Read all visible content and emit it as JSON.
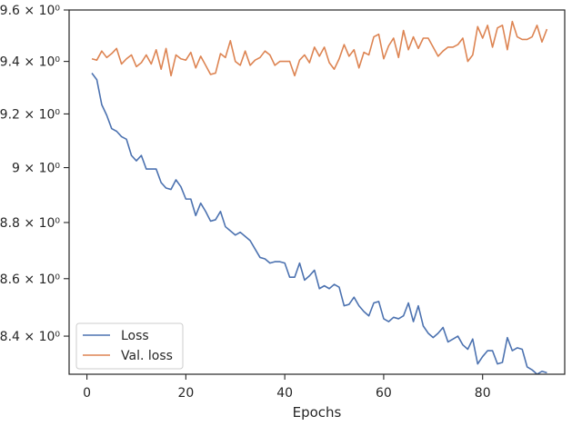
{
  "chart_data": {
    "type": "line",
    "xlabel": "Epochs",
    "ylabel": "",
    "xlim": [
      -3.6,
      96.6
    ],
    "ylim": [
      8.27,
      9.6
    ],
    "y_scale": "log",
    "grid": false,
    "legend_position": "lower-left",
    "x_ticks": [
      0,
      20,
      40,
      60,
      80
    ],
    "x_tick_labels": [
      "0",
      "20",
      "40",
      "60",
      "80"
    ],
    "y_ticks": [
      8.4,
      8.6,
      8.8,
      9.0,
      9.2,
      9.4,
      9.6
    ],
    "y_tick_labels": [
      "8.4 × 10⁰",
      "8.6 × 10⁰",
      "8.8 × 10⁰",
      "9 × 10⁰",
      "9.2 × 10⁰",
      "9.4 × 10⁰",
      "9.6 × 10⁰"
    ],
    "x": [
      1,
      2,
      3,
      4,
      5,
      6,
      7,
      8,
      9,
      10,
      11,
      12,
      13,
      14,
      15,
      16,
      17,
      18,
      19,
      20,
      21,
      22,
      23,
      24,
      25,
      26,
      27,
      28,
      29,
      30,
      31,
      32,
      33,
      34,
      35,
      36,
      37,
      38,
      39,
      40,
      41,
      42,
      43,
      44,
      45,
      46,
      47,
      48,
      49,
      50,
      51,
      52,
      53,
      54,
      55,
      56,
      57,
      58,
      59,
      60,
      61,
      62,
      63,
      64,
      65,
      66,
      67,
      68,
      69,
      70,
      71,
      72,
      73,
      74,
      75,
      76,
      77,
      78,
      79,
      80,
      81,
      82,
      83,
      84,
      85,
      86,
      87,
      88,
      89,
      90,
      91,
      92,
      93
    ],
    "series": [
      {
        "name": "Loss",
        "color": "#4c72b0",
        "values": [
          9.355,
          9.33,
          9.235,
          9.195,
          9.145,
          9.135,
          9.115,
          9.105,
          9.045,
          9.025,
          9.045,
          8.995,
          8.995,
          8.995,
          8.945,
          8.925,
          8.92,
          8.955,
          8.93,
          8.885,
          8.885,
          8.825,
          8.87,
          8.84,
          8.805,
          8.81,
          8.84,
          8.785,
          8.77,
          8.755,
          8.765,
          8.75,
          8.735,
          8.705,
          8.675,
          8.67,
          8.655,
          8.66,
          8.66,
          8.655,
          8.605,
          8.605,
          8.655,
          8.595,
          8.61,
          8.63,
          8.565,
          8.575,
          8.565,
          8.58,
          8.57,
          8.505,
          8.51,
          8.535,
          8.505,
          8.485,
          8.47,
          8.515,
          8.52,
          8.46,
          8.45,
          8.465,
          8.46,
          8.47,
          8.515,
          8.45,
          8.505,
          8.435,
          8.41,
          8.395,
          8.41,
          8.43,
          8.38,
          8.39,
          8.4,
          8.37,
          8.355,
          8.39,
          8.305,
          8.33,
          8.35,
          8.35,
          8.305,
          8.31,
          8.395,
          8.35,
          8.36,
          8.355,
          8.295,
          8.285,
          8.27,
          8.28,
          8.275
        ]
      },
      {
        "name": "Val. loss",
        "color": "#dd8452",
        "values": [
          9.41,
          9.405,
          9.44,
          9.415,
          9.43,
          9.45,
          9.39,
          9.41,
          9.425,
          9.38,
          9.395,
          9.425,
          9.39,
          9.445,
          9.37,
          9.45,
          9.345,
          9.425,
          9.41,
          9.405,
          9.435,
          9.375,
          9.42,
          9.385,
          9.35,
          9.355,
          9.43,
          9.415,
          9.48,
          9.4,
          9.385,
          9.44,
          9.385,
          9.405,
          9.415,
          9.44,
          9.425,
          9.385,
          9.4,
          9.4,
          9.4,
          9.345,
          9.405,
          9.425,
          9.395,
          9.455,
          9.42,
          9.455,
          9.395,
          9.37,
          9.41,
          9.465,
          9.42,
          9.445,
          9.375,
          9.435,
          9.425,
          9.495,
          9.505,
          9.41,
          9.46,
          9.49,
          9.415,
          9.52,
          9.445,
          9.495,
          9.45,
          9.49,
          9.49,
          9.455,
          9.42,
          9.44,
          9.455,
          9.455,
          9.465,
          9.49,
          9.4,
          9.425,
          9.535,
          9.49,
          9.54,
          9.455,
          9.53,
          9.54,
          9.445,
          9.555,
          9.495,
          9.485,
          9.485,
          9.495,
          9.54,
          9.475,
          9.525
        ]
      }
    ]
  }
}
